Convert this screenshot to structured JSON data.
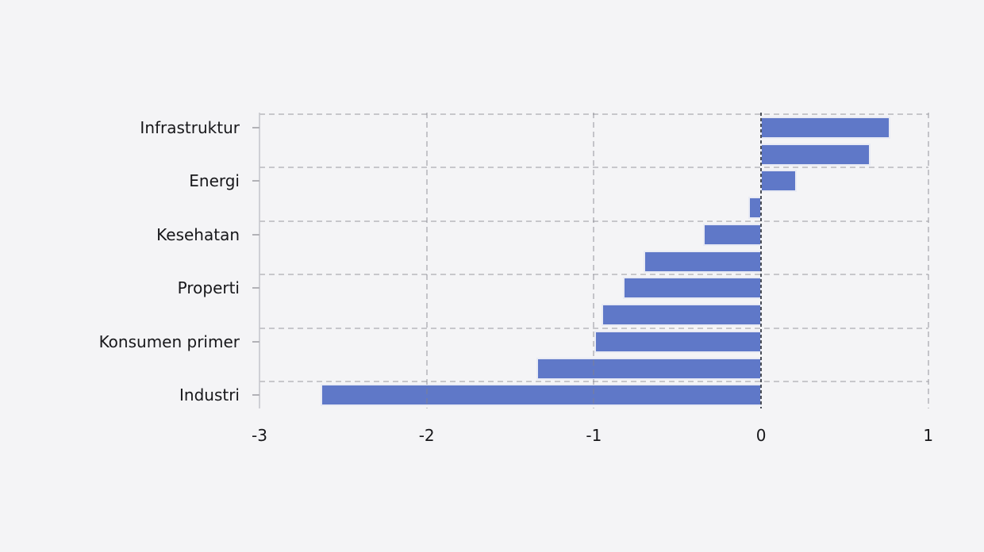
{
  "figure": {
    "background_color": "#f4f4f6",
    "title": ""
  },
  "chart_data": {
    "type": "bar",
    "orientation": "horizontal",
    "title": "",
    "xlabel": "",
    "ylabel": "",
    "xlim": [
      -3,
      1
    ],
    "x_tick_labels": [
      "-3",
      "-2",
      "-1",
      "0",
      "1"
    ],
    "x_tick_values": [
      -3,
      -2,
      -1,
      0,
      1
    ],
    "grid": "dashed",
    "legend": "none",
    "zero_line": true,
    "bar_color": "#5f78c8",
    "bar_edge_color": "#e9ebf4",
    "categories": [
      "Infrastruktur",
      "",
      "Energi",
      "",
      "Kesehatan",
      "",
      "Properti",
      "",
      "Konsumen primer",
      "",
      "Industri"
    ],
    "values": [
      0.77,
      0.65,
      0.21,
      -0.07,
      -0.34,
      -0.7,
      -0.82,
      -0.95,
      -0.99,
      -1.34,
      -2.63
    ],
    "labeled_categories": [
      "Infrastruktur",
      "Energi",
      "Kesehatan",
      "Properti",
      "Konsumen primer",
      "Industri"
    ]
  }
}
